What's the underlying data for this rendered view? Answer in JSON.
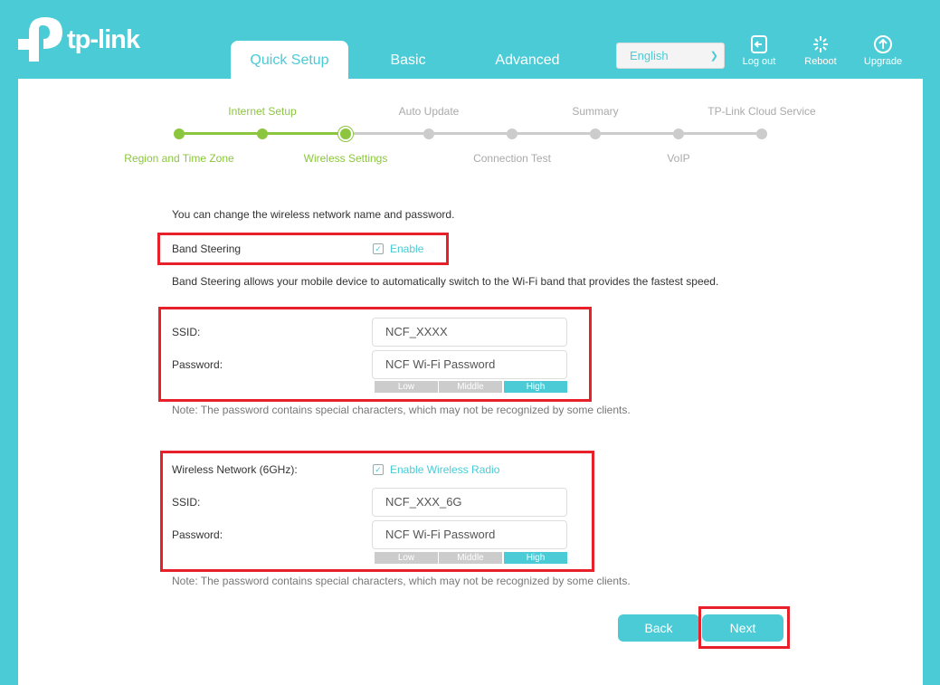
{
  "brand": {
    "name": "tp-link"
  },
  "nav": {
    "tabs": [
      {
        "label": "Quick Setup"
      },
      {
        "label": "Basic"
      },
      {
        "label": "Advanced"
      }
    ],
    "language": "English",
    "logout": "Log out",
    "reboot": "Reboot",
    "upgrade": "Upgrade"
  },
  "steps": {
    "top": [
      "Internet Setup",
      "Auto Update",
      "Summary",
      "TP-Link Cloud Service"
    ],
    "bottom": [
      "Region and Time Zone",
      "Wireless Settings",
      "Connection Test",
      "VoIP"
    ],
    "completed": 2,
    "current": 3,
    "total": 8
  },
  "intro": "You can change the wireless network name and password.",
  "band_steering": {
    "label": "Band Steering",
    "checkbox_label": "Enable",
    "checked": true,
    "description": "Band Steering allows your mobile device to automatically switch to the Wi-Fi band that provides the fastest speed."
  },
  "main_network": {
    "ssid_label": "SSID:",
    "ssid": "NCF_XXXX",
    "password_label": "Password:",
    "password": "NCF Wi-Fi Password",
    "strength": [
      "Low",
      "Middle",
      "High"
    ],
    "strength_level": "High",
    "note": "Note: The password contains special characters, which may not be recognized by some clients."
  },
  "network_6g": {
    "label": "Wireless Network (6GHz):",
    "checkbox_label": "Enable Wireless Radio",
    "checked": true,
    "ssid_label": "SSID:",
    "ssid": "NCF_XXX_6G",
    "password_label": "Password:",
    "password": "NCF Wi-Fi Password",
    "strength": [
      "Low",
      "Middle",
      "High"
    ],
    "strength_level": "High",
    "note": "Note: The password contains special characters, which may not be recognized by some clients."
  },
  "buttons": {
    "back": "Back",
    "next": "Next"
  },
  "colors": {
    "accent": "#4acbd6",
    "progress": "#8cc63f",
    "highlight": "#e8202a"
  }
}
